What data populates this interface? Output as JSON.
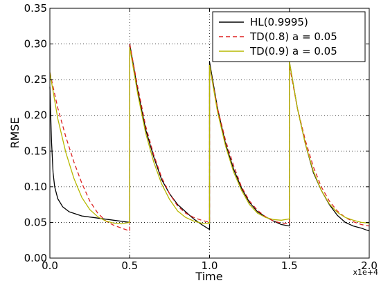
{
  "chart_data": {
    "type": "line",
    "xlabel": "Time",
    "ylabel": "RMSE",
    "x_offset_label": "x1e+4",
    "xlim": [
      0.0,
      2.0
    ],
    "ylim": [
      0.0,
      0.35
    ],
    "x_ticks": [
      "0.0",
      "0.5",
      "1.0",
      "1.5",
      "2.0"
    ],
    "y_ticks": [
      "0.00",
      "0.05",
      "0.10",
      "0.15",
      "0.20",
      "0.25",
      "0.30",
      "0.35"
    ],
    "x_tick_values": [
      0.0,
      0.5,
      1.0,
      1.5,
      2.0
    ],
    "y_tick_values": [
      0.0,
      0.05,
      0.1,
      0.15,
      0.2,
      0.25,
      0.3,
      0.35
    ],
    "grid": true,
    "legend_position": "top-right",
    "series": [
      {
        "name": "HL(0.9995)",
        "color": "#000000",
        "dash": "solid",
        "x": [
          0.0,
          0.01,
          0.02,
          0.03,
          0.05,
          0.08,
          0.12,
          0.2,
          0.3,
          0.4,
          0.5,
          0.5,
          0.55,
          0.6,
          0.65,
          0.7,
          0.75,
          0.8,
          0.85,
          0.9,
          0.95,
          1.0,
          1.0,
          1.05,
          1.1,
          1.15,
          1.2,
          1.25,
          1.3,
          1.35,
          1.4,
          1.45,
          1.5,
          1.5,
          1.55,
          1.6,
          1.65,
          1.7,
          1.75,
          1.8,
          1.85,
          1.9,
          1.95,
          2.0
        ],
        "y": [
          0.24,
          0.165,
          0.12,
          0.1,
          0.083,
          0.072,
          0.065,
          0.059,
          0.056,
          0.053,
          0.05,
          0.3,
          0.235,
          0.18,
          0.142,
          0.11,
          0.09,
          0.075,
          0.065,
          0.055,
          0.047,
          0.04,
          0.275,
          0.21,
          0.16,
          0.125,
          0.098,
          0.078,
          0.065,
          0.058,
          0.052,
          0.047,
          0.045,
          0.275,
          0.21,
          0.16,
          0.12,
          0.095,
          0.075,
          0.06,
          0.05,
          0.045,
          0.042,
          0.038
        ]
      },
      {
        "name": "TD(0.8) a = 0.05",
        "color": "#dd2222",
        "dash": "dashed",
        "x": [
          0.0,
          0.05,
          0.1,
          0.15,
          0.2,
          0.25,
          0.3,
          0.35,
          0.4,
          0.45,
          0.5,
          0.5,
          0.55,
          0.6,
          0.65,
          0.7,
          0.75,
          0.8,
          0.85,
          0.9,
          0.95,
          1.0,
          1.0,
          1.05,
          1.1,
          1.15,
          1.2,
          1.25,
          1.3,
          1.35,
          1.4,
          1.45,
          1.5,
          1.5,
          1.55,
          1.6,
          1.65,
          1.7,
          1.75,
          1.8,
          1.85,
          1.9,
          1.95,
          2.0
        ],
        "y": [
          0.26,
          0.21,
          0.17,
          0.135,
          0.105,
          0.08,
          0.063,
          0.052,
          0.046,
          0.042,
          0.038,
          0.3,
          0.24,
          0.185,
          0.145,
          0.113,
          0.09,
          0.073,
          0.063,
          0.057,
          0.053,
          0.05,
          0.27,
          0.21,
          0.165,
          0.13,
          0.1,
          0.08,
          0.067,
          0.058,
          0.052,
          0.049,
          0.048,
          0.27,
          0.21,
          0.165,
          0.128,
          0.1,
          0.08,
          0.066,
          0.057,
          0.051,
          0.047,
          0.045
        ]
      },
      {
        "name": "TD(0.9) a = 0.05",
        "color": "#b7b800",
        "dash": "solid",
        "x": [
          0.0,
          0.05,
          0.1,
          0.15,
          0.2,
          0.25,
          0.3,
          0.35,
          0.4,
          0.45,
          0.5,
          0.5,
          0.55,
          0.6,
          0.65,
          0.7,
          0.75,
          0.8,
          0.85,
          0.9,
          0.95,
          1.0,
          1.0,
          1.05,
          1.1,
          1.15,
          1.2,
          1.25,
          1.3,
          1.35,
          1.4,
          1.45,
          1.5,
          1.5,
          1.55,
          1.6,
          1.65,
          1.7,
          1.75,
          1.8,
          1.85,
          1.9,
          1.95,
          2.0
        ],
        "y": [
          0.26,
          0.195,
          0.148,
          0.112,
          0.085,
          0.068,
          0.058,
          0.052,
          0.049,
          0.048,
          0.05,
          0.295,
          0.23,
          0.175,
          0.135,
          0.104,
          0.082,
          0.066,
          0.057,
          0.052,
          0.049,
          0.048,
          0.27,
          0.205,
          0.157,
          0.121,
          0.095,
          0.075,
          0.063,
          0.057,
          0.054,
          0.053,
          0.055,
          0.275,
          0.21,
          0.16,
          0.122,
          0.095,
          0.076,
          0.064,
          0.057,
          0.053,
          0.05,
          0.049
        ]
      }
    ]
  }
}
